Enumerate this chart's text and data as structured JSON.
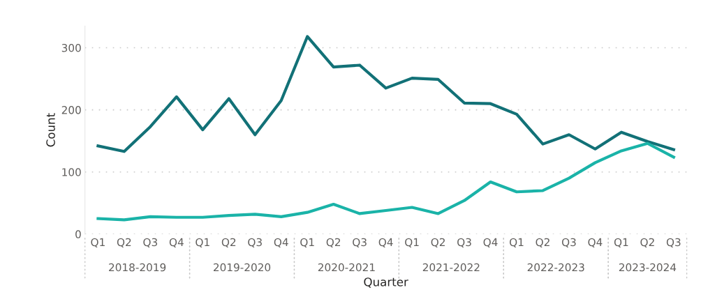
{
  "chart_data": {
    "type": "line",
    "xlabel": "Quarter",
    "ylabel": "Count",
    "categories": [
      "Q1",
      "Q2",
      "Q3",
      "Q4",
      "Q1",
      "Q2",
      "Q3",
      "Q4",
      "Q1",
      "Q2",
      "Q3",
      "Q4",
      "Q1",
      "Q2",
      "Q3",
      "Q4",
      "Q1",
      "Q2",
      "Q3",
      "Q4",
      "Q1",
      "Q2",
      "Q3"
    ],
    "series": [
      {
        "color": "#127177",
        "values": [
          142,
          133,
          173,
          221,
          168,
          218,
          160,
          215,
          318,
          269,
          272,
          235,
          251,
          249,
          211,
          210,
          193,
          145,
          160,
          137,
          164,
          149,
          136
        ]
      },
      {
        "color": "#1ab3a8",
        "values": [
          25,
          23,
          28,
          27,
          27,
          30,
          32,
          28,
          35,
          48,
          33,
          38,
          43,
          33,
          54,
          84,
          68,
          70,
          90,
          115,
          134,
          146,
          124
        ]
      }
    ],
    "annotations": [
      "2018-2019",
      "2019-2020",
      "2020-2021",
      "2021-2022",
      "2022-2023",
      "2023-2024"
    ],
    "ylim": [
      0,
      335
    ],
    "yticks": [
      0,
      100,
      200,
      300
    ],
    "grid": "y",
    "line_style": "solid",
    "marker": "none"
  }
}
